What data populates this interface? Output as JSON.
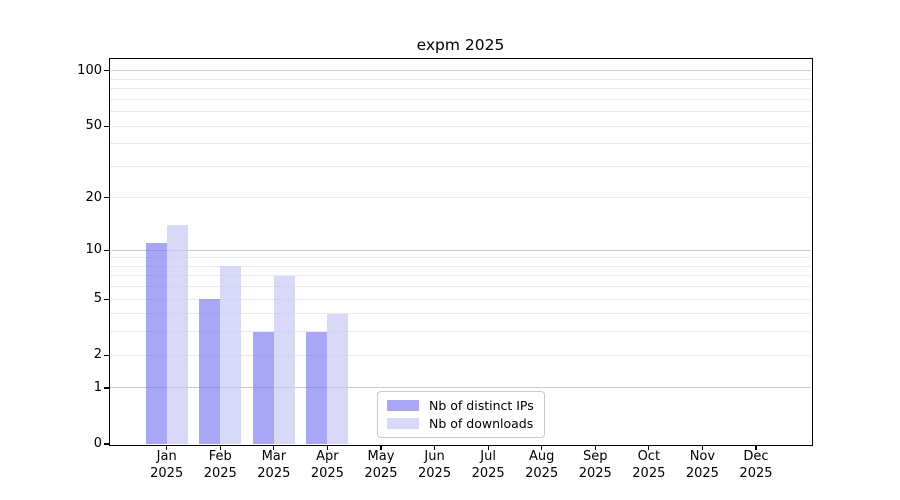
{
  "chart_data": {
    "type": "bar",
    "title": "expm 2025",
    "categories": [
      "Jan",
      "Feb",
      "Mar",
      "Apr",
      "May",
      "Jun",
      "Jul",
      "Aug",
      "Sep",
      "Oct",
      "Nov",
      "Dec"
    ],
    "x_year_label": "2025",
    "series": [
      {
        "name": "Nb of distinct IPs",
        "color": "rgba(120,120,240,0.65)",
        "values": [
          11,
          5,
          3,
          3,
          0,
          0,
          0,
          0,
          0,
          0,
          0,
          0
        ]
      },
      {
        "name": "Nb of downloads",
        "color": "rgba(200,200,245,0.70)",
        "values": [
          14,
          8,
          7,
          4,
          0,
          0,
          0,
          0,
          0,
          0,
          0,
          0
        ]
      }
    ],
    "yscale": "log1p",
    "ylim": [
      0,
      116
    ],
    "yticks": [
      100,
      50,
      20,
      10,
      5,
      2,
      1,
      0
    ],
    "gridlines": {
      "major": [
        1,
        10,
        100
      ],
      "minor": [
        2,
        3,
        4,
        5,
        6,
        7,
        8,
        9,
        20,
        30,
        40,
        50,
        60,
        70,
        80,
        90
      ]
    },
    "colors": {
      "major_grid": "#c9c9c9",
      "minor_grid": "#eaeaea",
      "axis": "#000000",
      "text": "#000000",
      "legend_border": "#c9c9c9"
    },
    "grid": true,
    "legend_location": "lower center"
  }
}
